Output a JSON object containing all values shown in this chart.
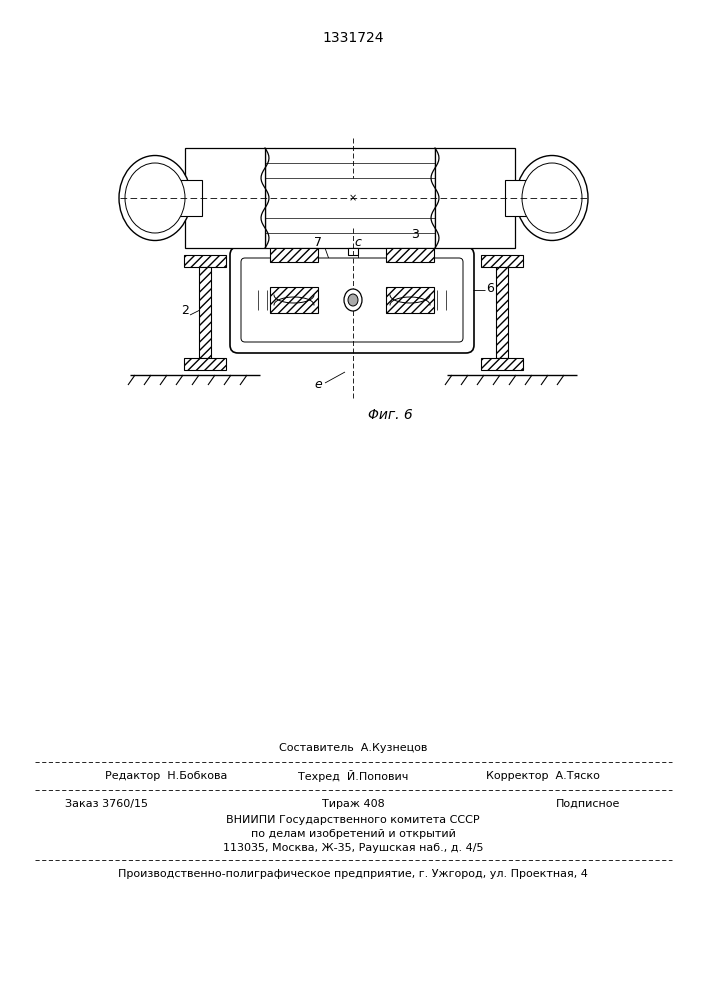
{
  "patent_number": "1331724",
  "figure_label": "Φиг. 6",
  "footer": {
    "line1_center": "Составитель  А.Кузнецов",
    "line2_left": "Редактор  Н.Бобкова",
    "line2_center": "Техред  Й.Попович",
    "line2_right": "Корректор  А.Тяско",
    "line3_left": "Заказ 3760/15",
    "line3_center": "Тираж 408",
    "line3_right": "Подписное",
    "line4": "ВНИИПИ Государственного комитета СССР",
    "line5": "по делам изобретений и открытий",
    "line6": "113035, Москва, Ж-35, Раушская наб., д. 4/5",
    "line7": "Производственно-полиграфическое предприятие, г. Ужгород, ул. Проектная, 4"
  }
}
